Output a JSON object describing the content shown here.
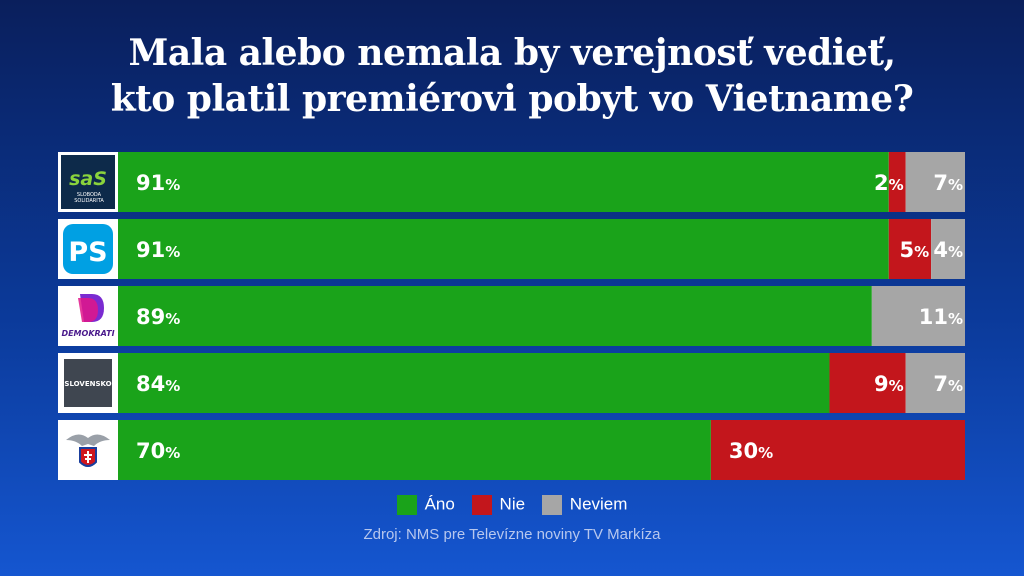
{
  "title": {
    "line1": "Mala alebo nemala by verejnosť vedieť,",
    "line2": "kto platil premiérovi pobyt vo Vietname?"
  },
  "colors": {
    "ano": "#1aa31a",
    "nie": "#c3161c",
    "neviem": "#a6a6a6",
    "separator": "#0c2461"
  },
  "logos": [
    {
      "party": "SaS",
      "icon": "sas-logo",
      "text_main": "saS",
      "text_sub1": "SLOBODA",
      "text_sub2": "SOLIDARITA"
    },
    {
      "party": "PS",
      "icon": "ps-logo",
      "text_main": "PS"
    },
    {
      "party": "Demokrati",
      "icon": "demokrati-logo",
      "text_main": "DEMOKRATI"
    },
    {
      "party": "Slovensko",
      "icon": "slovensko-logo",
      "text_main": "SLOVENSKO"
    },
    {
      "party": "SNS",
      "icon": "sns-eagle-logo"
    }
  ],
  "chart_data": {
    "type": "bar",
    "orientation": "horizontal",
    "stacked": true,
    "categories": [
      "SaS",
      "PS",
      "Demokrati",
      "Slovensko",
      "SNS"
    ],
    "series": [
      {
        "name": "Áno",
        "values": [
          91,
          91,
          89,
          84,
          70
        ]
      },
      {
        "name": "Nie",
        "values": [
          2,
          5,
          0,
          9,
          30
        ]
      },
      {
        "name": "Neviem",
        "values": [
          7,
          4,
          11,
          7,
          0
        ]
      }
    ],
    "unit": "%",
    "xlim": [
      0,
      100
    ],
    "legend": "bottom"
  },
  "legend": {
    "ano": "Áno",
    "nie": "Nie",
    "neviem": "Neviem"
  },
  "source": "Zdroj: NMS pre Televízne noviny TV Markíza"
}
